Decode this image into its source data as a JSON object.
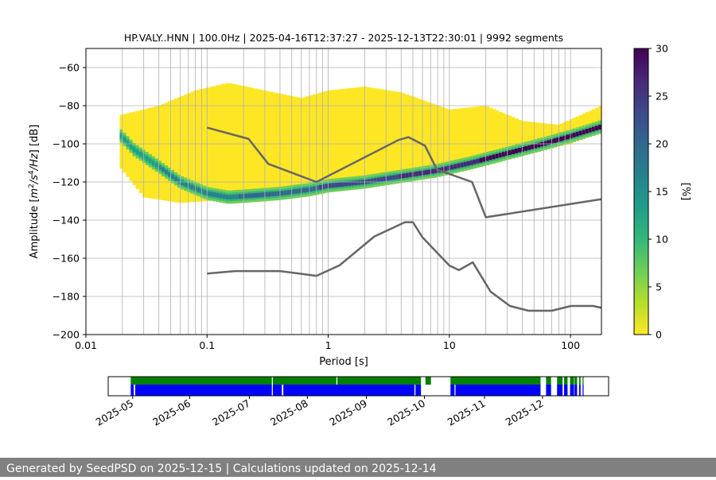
{
  "chart_data": {
    "type": "heatmap",
    "title": "HP.VALY..HNN | 100.0Hz | 2025-04-16T12:37:27 - 2025-12-13T22:30:01 | 9992 segments",
    "xlabel": "Period [s]",
    "ylabel": "Amplitude [m²/s⁴/Hz] [dB]",
    "xscale": "log",
    "xlim": [
      0.01,
      180
    ],
    "ylim": [
      -200,
      -50
    ],
    "xticks": [
      {
        "value": 0.01,
        "label": "0.01"
      },
      {
        "value": 0.1,
        "label": "0.1"
      },
      {
        "value": 1,
        "label": "1"
      },
      {
        "value": 10,
        "label": "10"
      },
      {
        "value": 100,
        "label": "100"
      }
    ],
    "yticks": [
      {
        "value": -60,
        "label": "−60"
      },
      {
        "value": -80,
        "label": "−80"
      },
      {
        "value": -100,
        "label": "−100"
      },
      {
        "value": -120,
        "label": "−120"
      },
      {
        "value": -140,
        "label": "−140"
      },
      {
        "value": -160,
        "label": "−160"
      },
      {
        "value": -180,
        "label": "−180"
      },
      {
        "value": -200,
        "label": "−200"
      }
    ],
    "colorbar": {
      "label": "[%]",
      "min": 0,
      "max": 30,
      "ticks": [
        {
          "value": 0,
          "label": "0"
        },
        {
          "value": 5,
          "label": "5"
        },
        {
          "value": 10,
          "label": "10"
        },
        {
          "value": 15,
          "label": "15"
        },
        {
          "value": 20,
          "label": "20"
        },
        {
          "value": 25,
          "label": "25"
        },
        {
          "value": 30,
          "label": "30"
        }
      ],
      "colors": [
        "#fde725",
        "#b5de2b",
        "#6ece58",
        "#35b779",
        "#1f9e89",
        "#26828e",
        "#31688e",
        "#3e4989",
        "#482878",
        "#440154"
      ]
    },
    "mode_curve": {
      "name": "mode",
      "points": [
        [
          0.019,
          -95
        ],
        [
          0.025,
          -103
        ],
        [
          0.04,
          -112
        ],
        [
          0.06,
          -120
        ],
        [
          0.1,
          -126
        ],
        [
          0.15,
          -128
        ],
        [
          0.25,
          -127
        ],
        [
          0.4,
          -126
        ],
        [
          0.7,
          -124
        ],
        [
          1,
          -122
        ],
        [
          2,
          -120
        ],
        [
          4,
          -117
        ],
        [
          8,
          -114
        ],
        [
          15,
          -110
        ],
        [
          30,
          -105
        ],
        [
          60,
          -100
        ],
        [
          100,
          -96
        ],
        [
          180,
          -91
        ]
      ]
    },
    "density_envelope": {
      "upper": [
        [
          0.019,
          -85
        ],
        [
          0.04,
          -80
        ],
        [
          0.08,
          -72
        ],
        [
          0.15,
          -68
        ],
        [
          0.3,
          -72
        ],
        [
          0.6,
          -76
        ],
        [
          1,
          -72
        ],
        [
          2,
          -70
        ],
        [
          4,
          -73
        ],
        [
          10,
          -82
        ],
        [
          20,
          -80
        ],
        [
          40,
          -88
        ],
        [
          80,
          -90
        ],
        [
          130,
          -84
        ],
        [
          180,
          -80
        ]
      ],
      "lower": [
        [
          0.019,
          -112
        ],
        [
          0.03,
          -128
        ],
        [
          0.06,
          -131
        ],
        [
          0.1,
          -130
        ],
        [
          0.2,
          -128
        ],
        [
          0.5,
          -126
        ],
        [
          1,
          -123
        ],
        [
          2,
          -120
        ],
        [
          5,
          -117
        ],
        [
          10,
          -113
        ],
        [
          20,
          -109
        ],
        [
          50,
          -104
        ],
        [
          100,
          -100
        ],
        [
          180,
          -93
        ]
      ]
    },
    "gridlines_periods": [
      0.02,
      0.03,
      0.04,
      0.05,
      0.06,
      0.07,
      0.08,
      0.09,
      0.2,
      0.3,
      0.4,
      0.5,
      0.6,
      0.7,
      0.8,
      0.9,
      2,
      3,
      4,
      5,
      6,
      7,
      8,
      9,
      20,
      30,
      40,
      50,
      60,
      70,
      80,
      90
    ],
    "series": [
      {
        "name": "NHNM",
        "points": [
          [
            0.1,
            -91.5
          ],
          [
            0.22,
            -97.4
          ],
          [
            0.32,
            -110.5
          ],
          [
            0.8,
            -120
          ],
          [
            3.8,
            -98
          ],
          [
            4.6,
            -96.5
          ],
          [
            6.3,
            -101
          ],
          [
            7.9,
            -113.5
          ],
          [
            15.4,
            -120
          ],
          [
            20,
            -138.5
          ],
          [
            180,
            -129
          ]
        ]
      },
      {
        "name": "NLNM",
        "points": [
          [
            0.1,
            -168
          ],
          [
            0.17,
            -166.7
          ],
          [
            0.4,
            -166.7
          ],
          [
            0.8,
            -169.2
          ],
          [
            1.24,
            -163.7
          ],
          [
            2.4,
            -148.6
          ],
          [
            4.3,
            -141.1
          ],
          [
            5,
            -141.1
          ],
          [
            6,
            -149
          ],
          [
            10,
            -163.8
          ],
          [
            12,
            -166.2
          ],
          [
            15.6,
            -162.1
          ],
          [
            21.9,
            -177.5
          ],
          [
            31.6,
            -185
          ],
          [
            45,
            -187.5
          ],
          [
            70,
            -187.5
          ],
          [
            101,
            -185
          ],
          [
            154,
            -185
          ],
          [
            180,
            -186
          ]
        ]
      }
    ],
    "availability": {
      "date_ticks": [
        {
          "t": 0.049,
          "label": "2025-05"
        },
        {
          "t": 0.163,
          "label": "2025-06"
        },
        {
          "t": 0.282,
          "label": "2025-07"
        },
        {
          "t": 0.398,
          "label": "2025-08"
        },
        {
          "t": 0.516,
          "label": "2025-09"
        },
        {
          "t": 0.632,
          "label": "2025-10"
        },
        {
          "t": 0.752,
          "label": "2025-11"
        },
        {
          "t": 0.868,
          "label": "2025-12"
        }
      ],
      "green_segments": [
        [
          0.045,
          0.327
        ],
        [
          0.329,
          0.456
        ],
        [
          0.458,
          0.625
        ],
        [
          0.634,
          0.645
        ],
        [
          0.684,
          0.864
        ],
        [
          0.875,
          0.885
        ],
        [
          0.897,
          0.908
        ],
        [
          0.911,
          0.918
        ],
        [
          0.923,
          0.931
        ],
        [
          0.932,
          0.937
        ],
        [
          0.941,
          0.944
        ],
        [
          0.948,
          0.95
        ]
      ],
      "blue_segments": [
        [
          0.045,
          0.051
        ],
        [
          0.054,
          0.327
        ],
        [
          0.329,
          0.347
        ],
        [
          0.35,
          0.612
        ],
        [
          0.614,
          0.625
        ],
        [
          0.684,
          0.692
        ],
        [
          0.694,
          0.864
        ],
        [
          0.875,
          0.885
        ],
        [
          0.897,
          0.908
        ],
        [
          0.911,
          0.918
        ],
        [
          0.923,
          0.931
        ],
        [
          0.932,
          0.937
        ],
        [
          0.941,
          0.944
        ],
        [
          0.948,
          0.95
        ]
      ]
    }
  },
  "footer": {
    "text": "Generated by SeedPSD on 2025-12-15 | Calculations updated on 2025-12-14"
  }
}
